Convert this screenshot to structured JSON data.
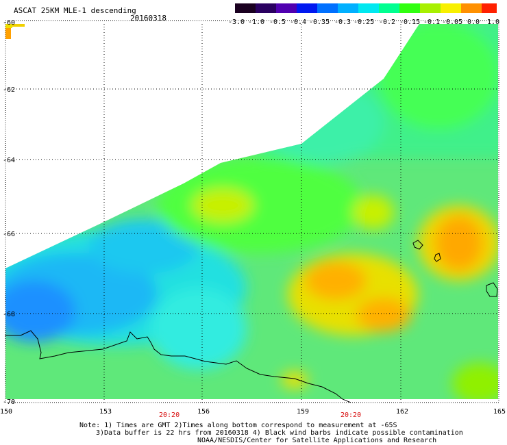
{
  "header": {
    "title": "ASCAT 25KM MLE-1 descending",
    "date": "20160318"
  },
  "colorbar": {
    "labels": [
      "-3.0",
      "-1.0",
      "-0.5",
      "-0.4",
      "-0.35",
      "-0.3",
      "-0.25",
      "-0.2",
      "-0.15",
      "-0.1",
      "-0.05",
      "0.0",
      "1.0"
    ],
    "colors": [
      "#1a0020",
      "#2a0060",
      "#5000b0",
      "#0018f0",
      "#0070ff",
      "#00b0ff",
      "#00e8f0",
      "#00ff90",
      "#30ff10",
      "#a8f000",
      "#f8f000",
      "#ff9000",
      "#ff2000"
    ]
  },
  "map": {
    "lat_labels": [
      "-60",
      "-62",
      "-64",
      "-66",
      "-68",
      "-70"
    ],
    "lon_labels": [
      "150",
      "153",
      "156",
      "159",
      "162",
      "165"
    ],
    "time_labels": [
      "20:20",
      "20:20"
    ],
    "field_description": "wind field swath",
    "coastline": "antarctic coastline"
  },
  "footer": {
    "note_line1": "Note: 1) Times are GMT 2)Times along bottom correspond to measurement at -65S",
    "note_line2": "3)Data buffer is 22 hrs from 20160318 4) Black wind barbs indicate possible contamination",
    "note_line3": "NOAA/NESDIS/Center for Satellite Applications and Research"
  }
}
